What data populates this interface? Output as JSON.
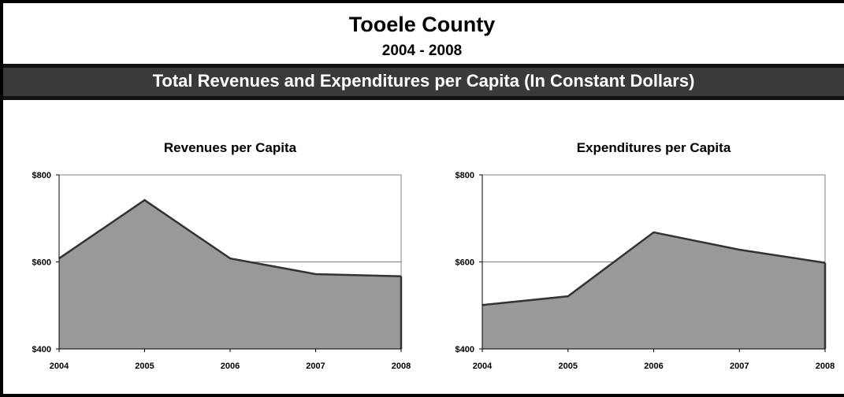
{
  "header": {
    "title": "Tooele County",
    "subtitle": "2004 - 2008",
    "banner": "Total Revenues and Expenditures per Capita (In Constant Dollars)"
  },
  "colors": {
    "area_fill": "#999999",
    "line": "#333333",
    "grid": "#808080",
    "axis": "#000000"
  },
  "chart_data": [
    {
      "type": "area",
      "title": "Revenues per Capita",
      "xlabel": "",
      "ylabel": "",
      "x": [
        "2004",
        "2005",
        "2006",
        "2007",
        "2008"
      ],
      "values": [
        608,
        742,
        608,
        572,
        567
      ],
      "ylim": [
        400,
        800
      ],
      "yticks": [
        400,
        600,
        800
      ],
      "ytick_labels": [
        "$400",
        "$600",
        "$800"
      ],
      "gridlines": [
        600
      ],
      "legend": "none"
    },
    {
      "type": "area",
      "title": "Expenditures per Capita",
      "xlabel": "",
      "ylabel": "",
      "x": [
        "2004",
        "2005",
        "2006",
        "2007",
        "2008"
      ],
      "values": [
        501,
        521,
        668,
        628,
        598
      ],
      "ylim": [
        400,
        800
      ],
      "yticks": [
        400,
        600,
        800
      ],
      "ytick_labels": [
        "$400",
        "$600",
        "$800"
      ],
      "gridlines": [
        600
      ],
      "legend": "none"
    }
  ]
}
